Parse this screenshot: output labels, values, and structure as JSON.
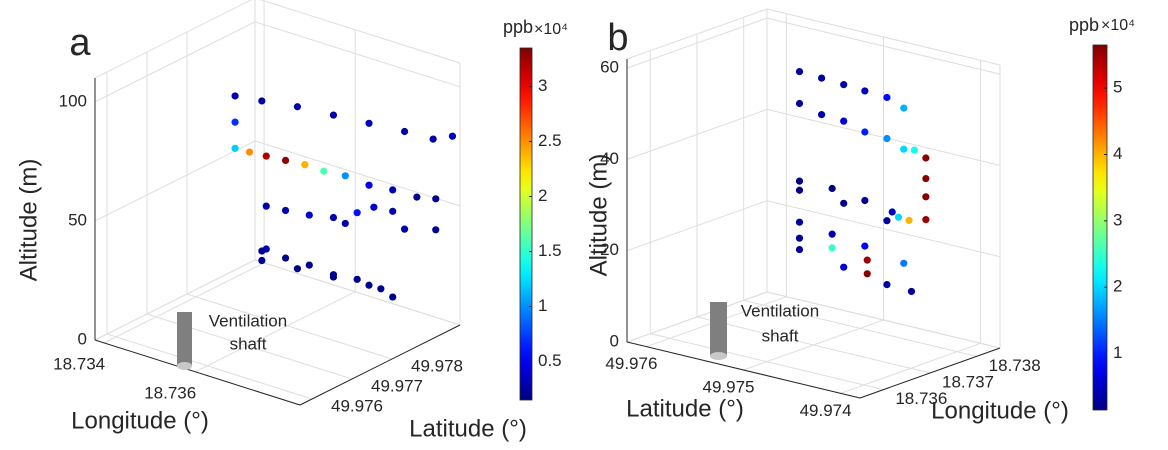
{
  "chart_data": [
    {
      "type": "scatter3d",
      "panel_label": "a",
      "xlabel": "Longitude (°)",
      "ylabel": "Latitude (°)",
      "zlabel": "Altitude (m)",
      "x": [
        18.73482,
        18.73482,
        18.73482,
        18.73525,
        18.73582,
        18.7364,
        18.73697,
        18.73754,
        18.738,
        18.73831,
        18.73505,
        18.73532,
        18.73563,
        18.73594,
        18.73624,
        18.73659,
        18.73697,
        18.73735,
        18.73774,
        18.73804,
        18.73804,
        18.73532,
        18.73532,
        18.73563,
        18.73601,
        18.7364,
        18.73659,
        18.73678,
        18.73705,
        18.73735,
        18.73754,
        18.73525,
        18.73563,
        18.73601,
        18.7364,
        18.73678,
        18.73716,
        18.73735,
        18.73525,
        18.73582,
        18.7364,
        18.73697
      ],
      "y": [
        49.97804,
        49.97804,
        49.97804,
        49.97822,
        49.97846,
        49.9787,
        49.97894,
        49.97918,
        49.97937,
        49.9795,
        49.97814,
        49.97825,
        49.97838,
        49.97851,
        49.97864,
        49.97878,
        49.97894,
        49.9791,
        49.97926,
        49.97939,
        49.97939,
        49.97825,
        49.97825,
        49.97838,
        49.97854,
        49.9787,
        49.97878,
        49.97886,
        49.97897,
        49.9791,
        49.97918,
        49.97822,
        49.97838,
        49.97854,
        49.9787,
        49.97886,
        49.97902,
        49.9791,
        49.97822,
        49.97846,
        49.9787,
        49.97894
      ],
      "z": [
        67,
        78,
        89,
        88,
        87,
        85,
        83,
        81,
        79,
        81,
        66,
        65,
        64,
        63,
        61,
        60,
        57,
        56,
        54,
        54,
        41,
        44,
        26,
        43,
        42,
        42,
        40,
        45,
        48,
        47,
        40,
        25,
        23,
        21,
        18,
        17,
        14,
        11,
        21,
        19,
        17,
        15
      ],
      "values": [
        1.2,
        0.7,
        0.3,
        0.25,
        0.3,
        0.3,
        0.35,
        0.3,
        0.3,
        0.35,
        2.5,
        3.2,
        3.3,
        2.4,
        1.6,
        1.0,
        0.5,
        0.3,
        0.2,
        0.2,
        0.2,
        0.3,
        0.3,
        0.3,
        0.4,
        0.3,
        0.3,
        0.6,
        0.4,
        0.3,
        0.3,
        0.2,
        0.2,
        0.2,
        0.2,
        0.2,
        0.2,
        0.2,
        0.2,
        0.2,
        0.2,
        0.2
      ],
      "colormap": "jet",
      "grid": true,
      "xlim": [
        18.7338,
        18.7383
      ],
      "ylim": [
        49.9757,
        49.9797
      ],
      "zlim": [
        0,
        110
      ],
      "xticks": [
        18.734,
        18.736
      ],
      "yticks": [
        49.976,
        49.977,
        49.978
      ],
      "zticks": [
        0,
        50,
        100
      ],
      "clim": [
        0.15,
        3.35
      ],
      "cticks": [
        0.5,
        1,
        1.5,
        2,
        2.5,
        3
      ],
      "colorbar_label": "ppb",
      "colorbar_multiplier": "×10⁴",
      "annotation_lines": [
        "Ventilation",
        "shaft"
      ]
    },
    {
      "type": "scatter3d",
      "panel_label": "b",
      "xlabel": "Longitude (°)",
      "ylabel": "Latitude (°)",
      "zlabel": "Altitude (m)",
      "x": [
        18.7367,
        18.73682,
        18.73694,
        18.73706,
        18.73718,
        18.73727,
        18.7367,
        18.73682,
        18.73694,
        18.73706,
        18.73718,
        18.73727,
        18.73733,
        18.73739,
        18.73739,
        18.73739,
        18.73739,
        18.7373,
        18.73724,
        18.7367,
        18.73688,
        18.73706,
        18.73721,
        18.7367,
        18.73694,
        18.73718,
        18.7367,
        18.73688,
        18.73706,
        18.73727,
        18.7367,
        18.73688,
        18.73707,
        18.73707,
        18.7367,
        18.73694,
        18.73718,
        18.73731
      ],
      "y": [
        49.975,
        49.97483,
        49.97466,
        49.9745,
        49.97433,
        49.9742,
        49.975,
        49.97483,
        49.97466,
        49.9745,
        49.97433,
        49.9742,
        49.97412,
        49.97403,
        49.97403,
        49.97403,
        49.97403,
        49.97416,
        49.97424,
        49.975,
        49.97475,
        49.9745,
        49.97429,
        49.975,
        49.97466,
        49.97433,
        49.975,
        49.97475,
        49.9745,
        49.9742,
        49.975,
        49.97475,
        49.97448,
        49.97448,
        49.975,
        49.97466,
        49.97433,
        49.97414
      ],
      "z": [
        61,
        60,
        59,
        58,
        57,
        55,
        54,
        52,
        51,
        49,
        48,
        46,
        46,
        44.5,
        40,
        36,
        31,
        30.5,
        31,
        37,
        36,
        34,
        32,
        35,
        33,
        30,
        28,
        26,
        24,
        21,
        24.5,
        23,
        21,
        18,
        22,
        19,
        16,
        15
      ],
      "values": [
        0.3,
        0.3,
        0.35,
        0.5,
        0.9,
        1.8,
        0.3,
        0.4,
        0.6,
        1.0,
        1.6,
        2.0,
        2.3,
        5.6,
        5.6,
        5.6,
        5.5,
        4.0,
        2.0,
        0.2,
        0.2,
        0.3,
        0.5,
        0.2,
        0.2,
        0.3,
        0.3,
        0.4,
        0.8,
        1.5,
        0.3,
        2.5,
        5.5,
        5.6,
        0.3,
        0.6,
        0.3,
        0.3
      ],
      "colormap": "jet",
      "grid": true,
      "xlim": [
        18.7355,
        18.7385
      ],
      "ylim": [
        49.9738,
        49.9762
      ],
      "zlim": [
        0,
        62
      ],
      "xticks": [
        18.736,
        18.737,
        18.738
      ],
      "yticks": [
        49.974,
        49.975,
        49.976
      ],
      "zticks": [
        0,
        20,
        40,
        60
      ],
      "clim": [
        0.15,
        5.65
      ],
      "cticks": [
        1,
        2,
        3,
        4,
        5
      ],
      "colorbar_label": "ppb",
      "colorbar_multiplier": "×10⁴",
      "annotation_lines": [
        "Ventilation",
        "shaft"
      ]
    }
  ]
}
